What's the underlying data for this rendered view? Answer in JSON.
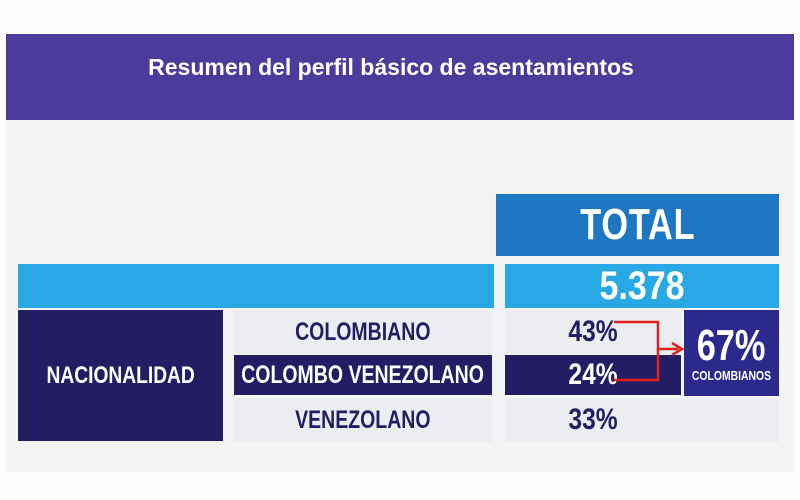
{
  "header": {
    "title": "Resumen del perfil básico de asentamientos"
  },
  "table": {
    "total_label": "TOTAL",
    "total_count": "5.378",
    "category_label": "NACIONALIDAD",
    "rows": [
      {
        "label": "COLOMBIANO",
        "percent": "43%"
      },
      {
        "label": "COLOMBO VENEZOLANO",
        "percent": "24%"
      },
      {
        "label": "VENEZOLANO",
        "percent": "33%"
      }
    ],
    "summary": {
      "percent": "67%",
      "label": "COLOMBIANOS"
    }
  },
  "colors": {
    "header_band": "#4b3b9a",
    "total_blue": "#1e77c3",
    "cyan": "#29a8e6",
    "navy": "#231e63",
    "summary_blue": "#2b2a8c",
    "bracket_red": "#e0201c"
  }
}
